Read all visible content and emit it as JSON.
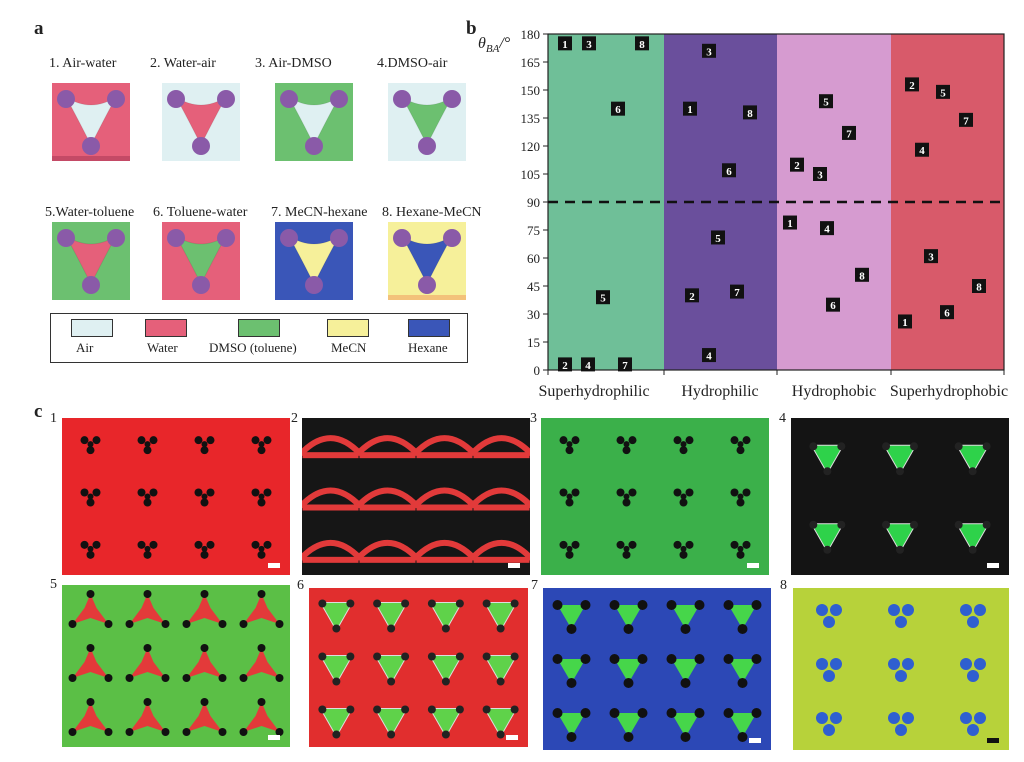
{
  "panel_a": {
    "letter": "a",
    "captions": [
      "1. Air-water",
      "2. Water-air",
      "3. Air-DMSO",
      "4.DMSO-air",
      "5.Water-toluene",
      "6. Toluene-water",
      "7. MeCN-hexane",
      "8. Hexane-MeCN"
    ],
    "legend": [
      "Air",
      "Water",
      "DMSO (toluene)",
      "MeCN",
      "Hexane"
    ],
    "colors": {
      "air": "#dff0f2",
      "water": "#e5607a",
      "dmso": "#6cc070",
      "mecn": "#f6f09a",
      "hexane": "#3a56b8",
      "node": "#8a5aa8"
    }
  },
  "panel_b": {
    "letter": "b",
    "ylabel": "θBA/°",
    "yticks": [
      "0",
      "15",
      "30",
      "45",
      "60",
      "75",
      "90",
      "105",
      "120",
      "135",
      "150",
      "165",
      "180"
    ],
    "categories": [
      "Superhydrophilic",
      "Hydrophilic",
      "Hydrophobic",
      "Superhydrophobic"
    ],
    "region_colors": [
      "#6fbf98",
      "#6a4f9c",
      "#d69bd0",
      "#d85a6a"
    ]
  },
  "chart_data": {
    "type": "scatter",
    "xlabel": "",
    "ylabel": "θBA/°",
    "ylim": [
      0,
      180
    ],
    "categories": [
      "Superhydrophilic",
      "Hydrophilic",
      "Hydrophobic",
      "Superhydrophobic"
    ],
    "reference_line_y": 90,
    "points": [
      {
        "cat": 0,
        "label": "1",
        "y": 175
      },
      {
        "cat": 0,
        "label": "3",
        "y": 175
      },
      {
        "cat": 0,
        "label": "8",
        "y": 175
      },
      {
        "cat": 0,
        "label": "6",
        "y": 140
      },
      {
        "cat": 0,
        "label": "5",
        "y": 39
      },
      {
        "cat": 0,
        "label": "2",
        "y": 3
      },
      {
        "cat": 0,
        "label": "4",
        "y": 3
      },
      {
        "cat": 0,
        "label": "7",
        "y": 3
      },
      {
        "cat": 1,
        "label": "3",
        "y": 171
      },
      {
        "cat": 1,
        "label": "1",
        "y": 140
      },
      {
        "cat": 1,
        "label": "8",
        "y": 138
      },
      {
        "cat": 1,
        "label": "6",
        "y": 107
      },
      {
        "cat": 1,
        "label": "5",
        "y": 71
      },
      {
        "cat": 1,
        "label": "7",
        "y": 42
      },
      {
        "cat": 1,
        "label": "2",
        "y": 40
      },
      {
        "cat": 1,
        "label": "4",
        "y": 8
      },
      {
        "cat": 2,
        "label": "5",
        "y": 144
      },
      {
        "cat": 2,
        "label": "7",
        "y": 127
      },
      {
        "cat": 2,
        "label": "2",
        "y": 110
      },
      {
        "cat": 2,
        "label": "3",
        "y": 105
      },
      {
        "cat": 2,
        "label": "1",
        "y": 79
      },
      {
        "cat": 2,
        "label": "4",
        "y": 76
      },
      {
        "cat": 2,
        "label": "8",
        "y": 51
      },
      {
        "cat": 2,
        "label": "6",
        "y": 35
      },
      {
        "cat": 3,
        "label": "2",
        "y": 153
      },
      {
        "cat": 3,
        "label": "5",
        "y": 149
      },
      {
        "cat": 3,
        "label": "7",
        "y": 134
      },
      {
        "cat": 3,
        "label": "4",
        "y": 118
      },
      {
        "cat": 3,
        "label": "3",
        "y": 61
      },
      {
        "cat": 3,
        "label": "8",
        "y": 45
      },
      {
        "cat": 3,
        "label": "6",
        "y": 31
      },
      {
        "cat": 3,
        "label": "1",
        "y": 26
      }
    ]
  },
  "panel_c": {
    "letter": "c",
    "numbers": [
      "1",
      "2",
      "3",
      "4",
      "5",
      "6",
      "7",
      "8"
    ]
  }
}
